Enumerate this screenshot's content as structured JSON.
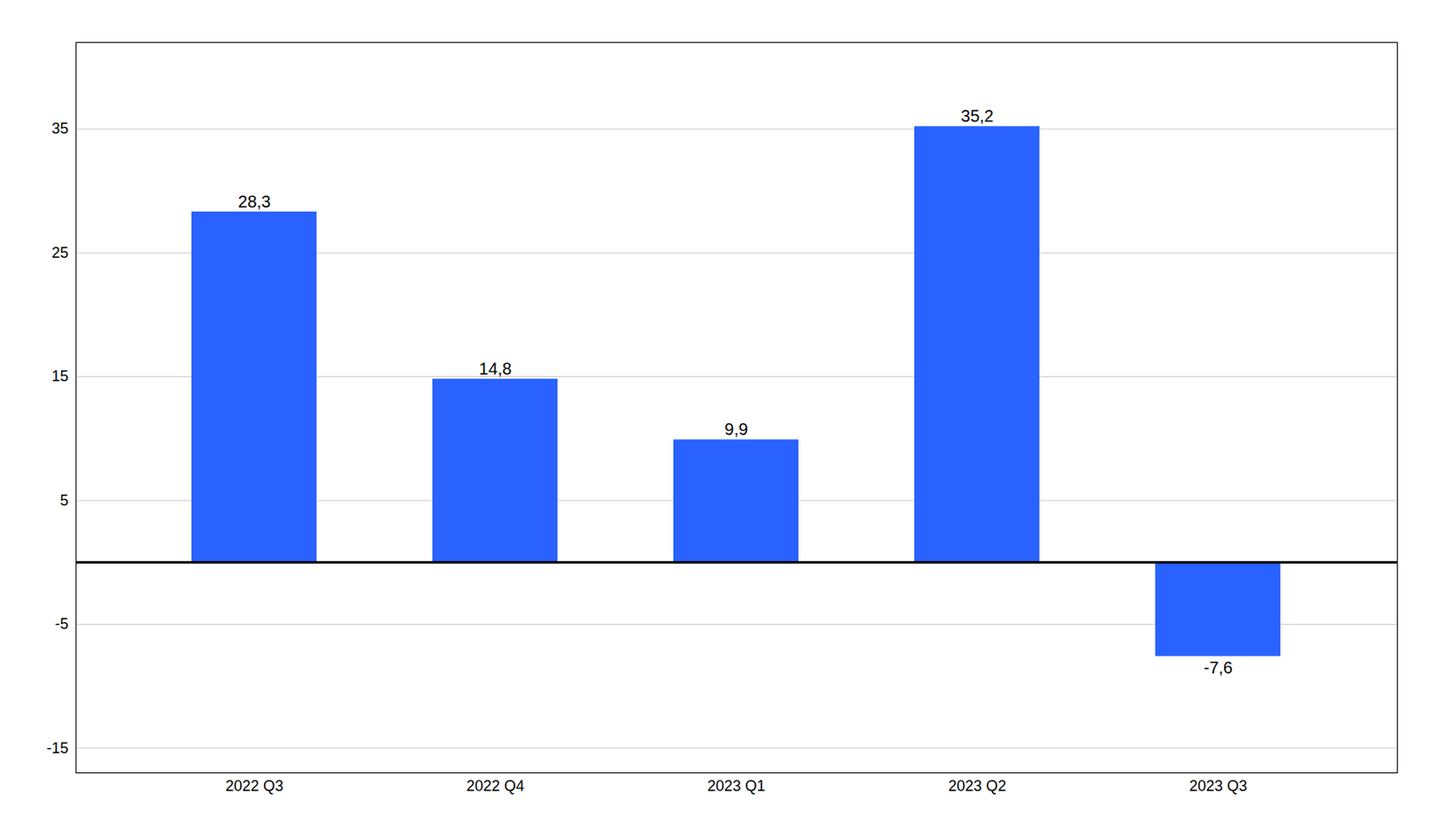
{
  "chart_data": {
    "type": "bar",
    "categories": [
      "2022 Q3",
      "2022 Q4",
      "2023 Q1",
      "2023 Q2",
      "2023 Q3"
    ],
    "values": [
      28.3,
      14.8,
      9.9,
      35.2,
      -7.6
    ],
    "value_labels": [
      "28,3",
      "14,8",
      "9,9",
      "35,2",
      "-7,6"
    ],
    "color": "#2962FF",
    "ylim": [
      -17,
      42
    ],
    "yticks": [
      -15,
      -5,
      5,
      15,
      25,
      35
    ],
    "grid": true,
    "data_labels": true
  }
}
